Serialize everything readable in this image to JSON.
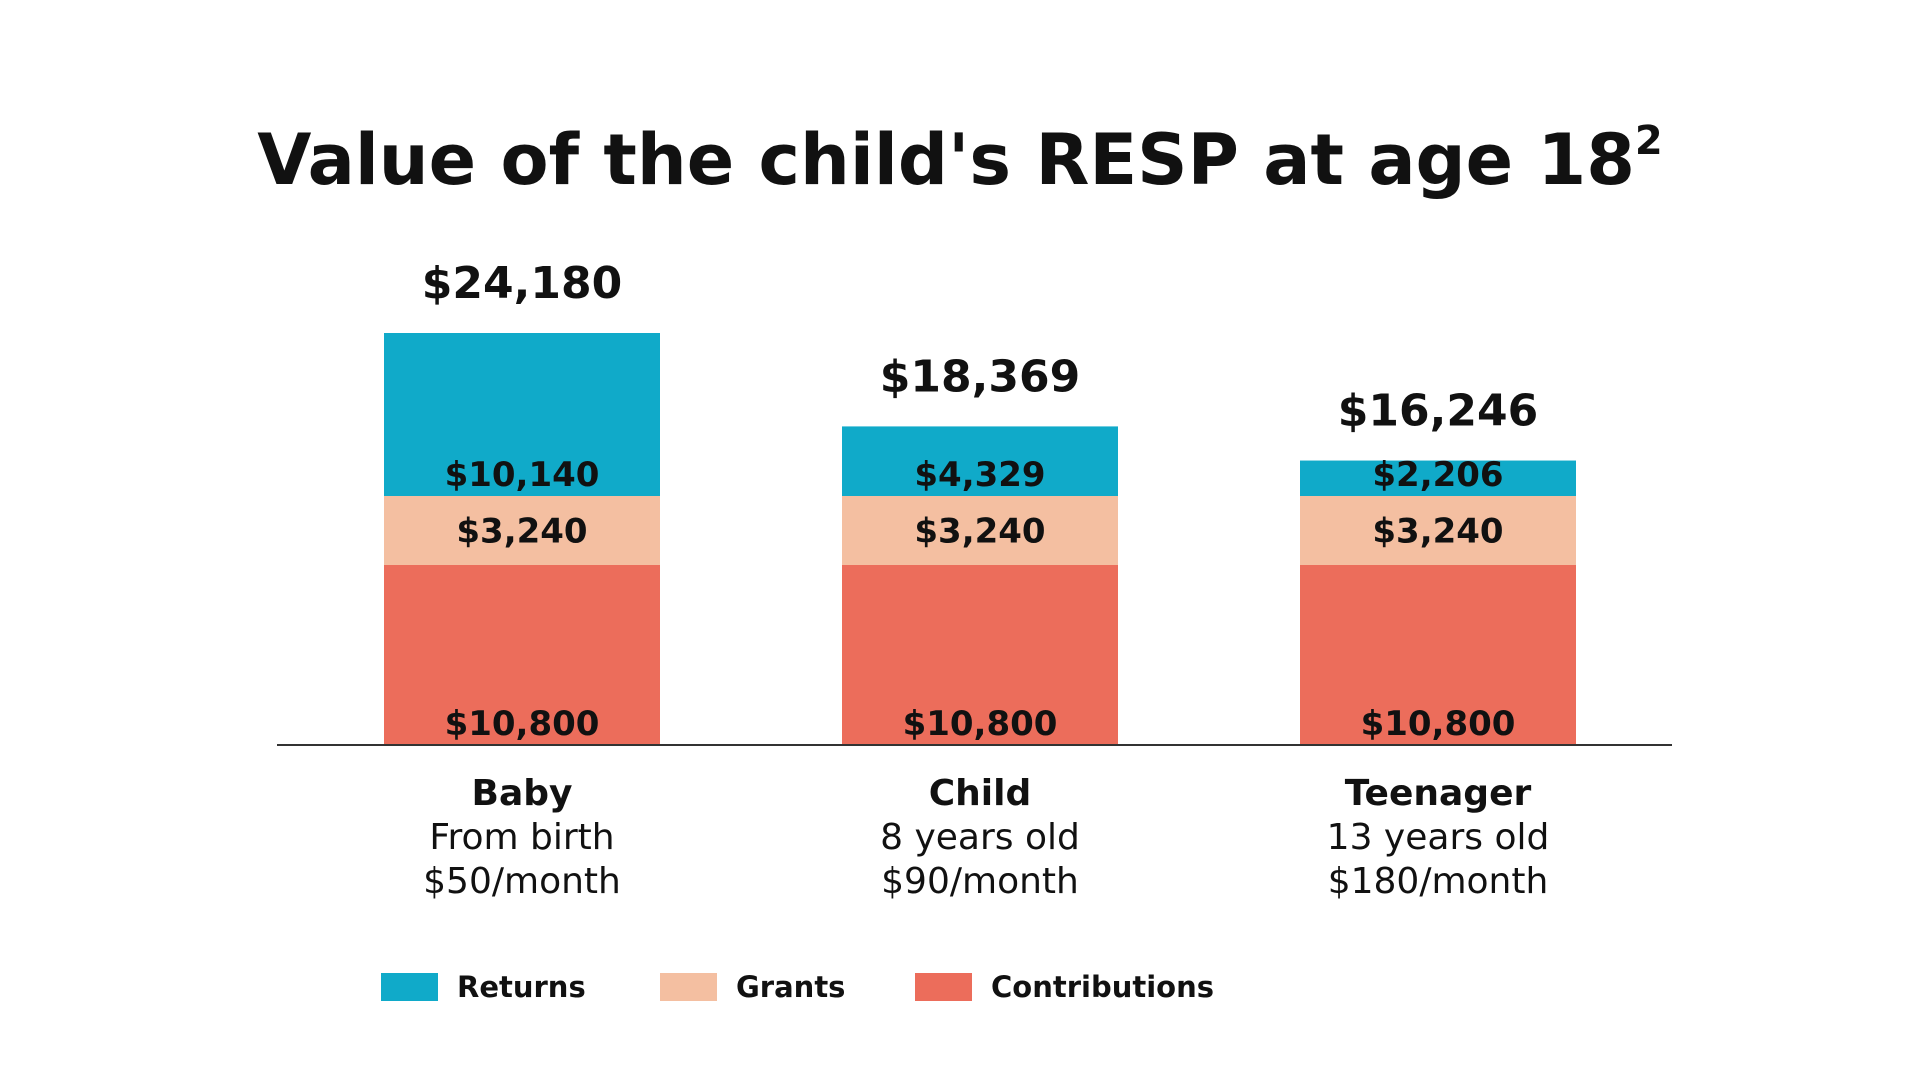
{
  "chart_data": {
    "type": "bar",
    "stacked": true,
    "title": "Value of the child's RESP at age 18",
    "title_superscript": "2",
    "categories": [
      {
        "name": "Baby",
        "lines": [
          "From birth",
          "$50/month"
        ]
      },
      {
        "name": "Child",
        "lines": [
          "8 years old",
          "$90/month"
        ]
      },
      {
        "name": "Teenager",
        "lines": [
          "13 years old",
          "$180/month"
        ]
      }
    ],
    "series": [
      {
        "name": "Contributions",
        "color": "#ec6d5b",
        "values": [
          10800,
          10800,
          10800
        ],
        "labels": [
          "$10,800",
          "$10,800",
          "$10,800"
        ]
      },
      {
        "name": "Grants",
        "color": "#f4bfa1",
        "values": [
          3240,
          3240,
          3240
        ],
        "labels": [
          "$3,240",
          "$3,240",
          "$3,240"
        ]
      },
      {
        "name": "Returns",
        "color": "#10aac9",
        "values": [
          10140,
          4329,
          2206
        ],
        "labels": [
          "$10,140",
          "$4,329",
          "$2,206"
        ]
      }
    ],
    "totals": [
      "$24,180",
      "$18,369",
      "$16,246"
    ],
    "legend": {
      "position": "bottom-left",
      "items": [
        {
          "name": "Returns",
          "color": "#10aac9"
        },
        {
          "name": "Grants",
          "color": "#f4bfa1"
        },
        {
          "name": "Contributions",
          "color": "#ec6d5b"
        }
      ]
    },
    "grid": false,
    "axes_visible": false,
    "baseline": true
  }
}
